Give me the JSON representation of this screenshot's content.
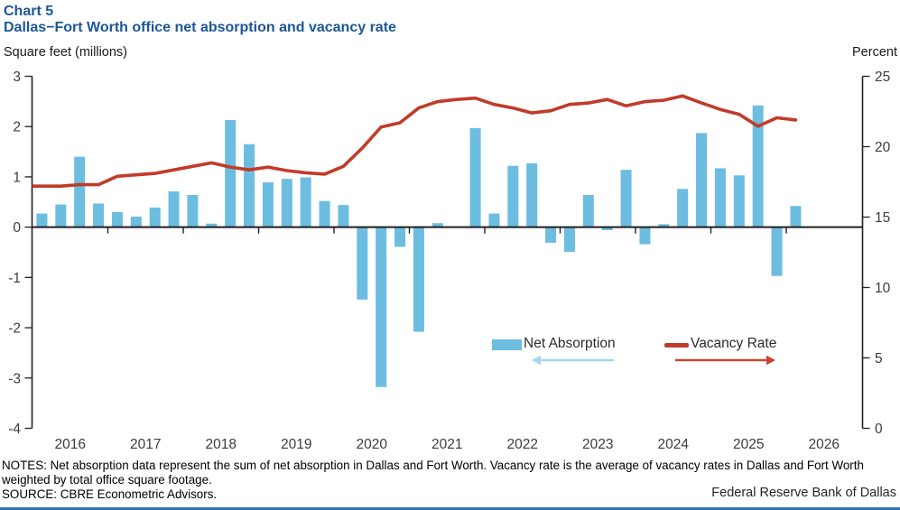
{
  "header": {
    "chart_label": "Chart 5",
    "title": "Dallas−Fort Worth office net absorption and vacancy rate"
  },
  "axis_labels": {
    "left": "Square feet (millions)",
    "right": "Percent"
  },
  "legend": {
    "bar_label": "Net Absorption",
    "line_label": "Vacancy Rate"
  },
  "footer": {
    "notes": "NOTES: Net absorption data represent the sum of net absorption in Dallas and Fort Worth. Vacancy rate is the average of vacancy rates in Dallas and Fort Worth weighted by total office square footage.",
    "source": "SOURCE: CBRE Econometric Advisors.",
    "attribution": "Federal Reserve Bank of Dallas"
  },
  "colors": {
    "bar": "#6CBDE0",
    "bar_arrow": "#A7D6EE",
    "line": "#C13B2A",
    "line_arrow": "#C94433",
    "title": "#1C5796",
    "divider": "#2E74B5",
    "axis": "#1f1f1f",
    "tick_text": "#3d3d3d"
  },
  "chart_data": {
    "type": "bar+line combo",
    "frequency": "quarterly",
    "start_quarter": "2016 Q1",
    "years": [
      2016,
      2017,
      2018,
      2019,
      2020,
      2021,
      2022,
      2023,
      2024,
      2025,
      2026
    ],
    "left_axis": {
      "label": "Square feet (millions)",
      "ticks": [
        3,
        2,
        1,
        0,
        -1,
        -2,
        -3,
        -4
      ],
      "range": [
        -4,
        3
      ]
    },
    "right_axis": {
      "label": "Percent",
      "ticks": [
        25,
        20,
        15,
        10,
        5,
        0
      ],
      "range": [
        0,
        25
      ]
    },
    "series": [
      {
        "name": "Net Absorption",
        "axis": "left",
        "type": "bar",
        "values": [
          0.27,
          0.45,
          1.4,
          0.47,
          0.3,
          0.21,
          0.39,
          0.71,
          0.64,
          0.07,
          2.13,
          1.65,
          0.89,
          0.96,
          0.99,
          0.52,
          0.44,
          -1.44,
          -3.18,
          -0.39,
          -2.08,
          0.08,
          0.0,
          1.97,
          0.27,
          1.22,
          1.27,
          -0.31,
          -0.49,
          0.64,
          -0.06,
          1.14,
          -0.34,
          0.06,
          0.76,
          1.87,
          1.17,
          1.03,
          2.42,
          -0.97,
          0.42
        ]
      },
      {
        "name": "Vacancy Rate",
        "axis": "right",
        "type": "line",
        "values": [
          17.2,
          17.2,
          17.3,
          17.3,
          17.9,
          18.0,
          18.1,
          18.35,
          18.6,
          18.85,
          18.55,
          18.35,
          18.55,
          18.3,
          18.15,
          18.05,
          18.6,
          19.9,
          21.4,
          21.7,
          22.75,
          23.2,
          23.35,
          23.45,
          23.0,
          22.75,
          22.4,
          22.55,
          23.0,
          23.1,
          23.35,
          22.9,
          23.2,
          23.3,
          23.6,
          23.1,
          22.65,
          22.3,
          21.45,
          22.05,
          21.9
        ]
      }
    ]
  }
}
